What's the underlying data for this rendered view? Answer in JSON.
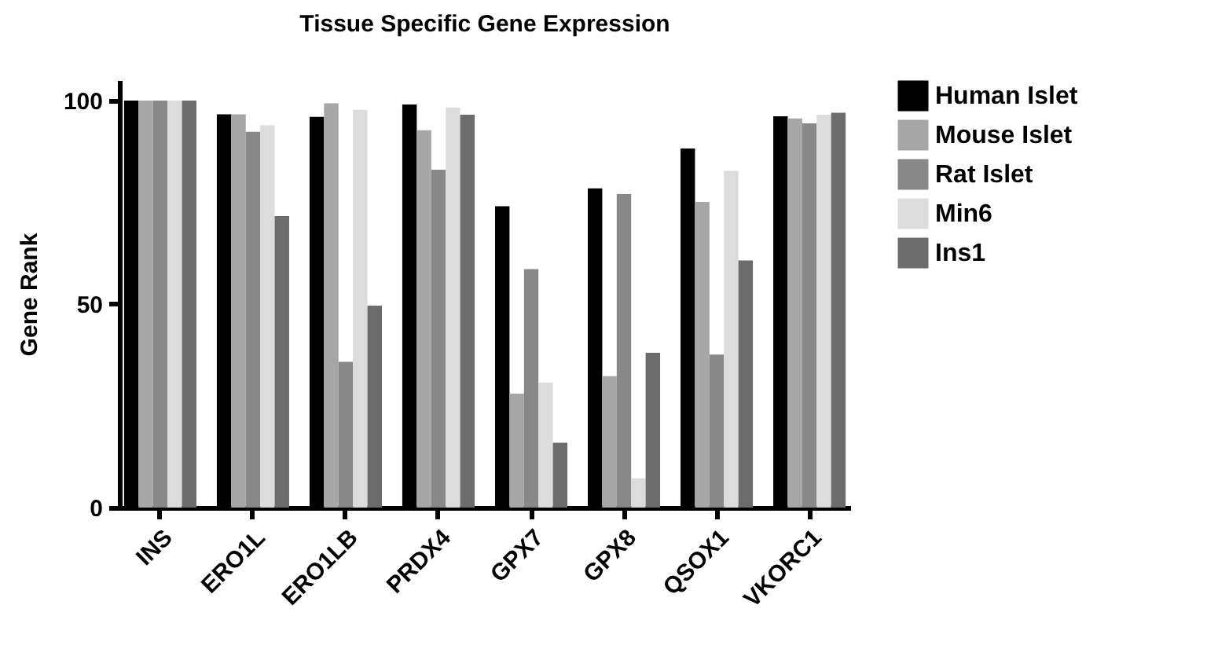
{
  "chart_data": {
    "type": "bar",
    "title": "Tissue Specific Gene Expression",
    "ylabel": "Gene Rank",
    "categories": [
      "INS",
      "ERO1L",
      "ERO1LB",
      "PRDX4",
      "GPX7",
      "GPX8",
      "QSOX1",
      "VKORC1"
    ],
    "series": [
      {
        "name": "Human Islet",
        "color": "#000000",
        "values": [
          100,
          96.6,
          96,
          99,
          74,
          78.4,
          88.2,
          96.1
        ]
      },
      {
        "name": "Mouse Islet",
        "color": "#a6a6a6",
        "values": [
          100,
          96.6,
          99.3,
          92.7,
          28,
          32.3,
          75.1,
          95.6
        ]
      },
      {
        "name": "Rat Islet",
        "color": "#888888",
        "values": [
          100,
          92.3,
          35.8,
          83,
          58.6,
          77,
          37.6,
          94.4
        ]
      },
      {
        "name": "Min6",
        "color": "#dcdcdc",
        "values": [
          100,
          93.9,
          97.7,
          98.3,
          30.7,
          7.2,
          82.7,
          96.5
        ]
      },
      {
        "name": "Ins1",
        "color": "#6c6c6c",
        "values": [
          100,
          71.6,
          49.6,
          96.5,
          15.9,
          38,
          60.7,
          97
        ]
      }
    ],
    "ylim": [
      0,
      105
    ],
    "yticks": [
      0,
      50,
      100
    ],
    "grid": false,
    "legend": "top right"
  }
}
